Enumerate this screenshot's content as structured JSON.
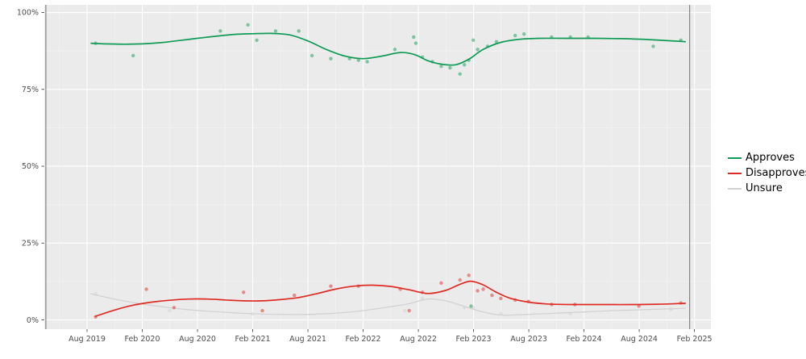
{
  "chart_data": {
    "type": "line",
    "title": "",
    "legend_position": "right",
    "background": "#ffffff",
    "panel_background": "#ebebeb",
    "grid_major_color": "#ffffff",
    "grid_minor_color": "#f4f4f4",
    "tick_label_color": "#4d4d4d",
    "tick_mark_color": "#333333",
    "reference_line_color": "#6e6e6e",
    "x_axis": {
      "range": [
        2019.196,
        2025.232
      ],
      "ticks": [
        "Aug 2019",
        "Feb 2020",
        "Aug 2020",
        "Feb 2021",
        "Aug 2021",
        "Feb 2022",
        "Aug 2022",
        "Feb 2023",
        "Aug 2023",
        "Feb 2024",
        "Aug 2024",
        "Feb 2025"
      ],
      "tick_positions": [
        2019.583,
        2020.083,
        2020.583,
        2021.083,
        2021.583,
        2022.083,
        2022.583,
        2023.083,
        2023.583,
        2024.083,
        2024.583,
        2025.083
      ]
    },
    "y_axis": {
      "range": [
        -3,
        102.5
      ],
      "ticks": [
        "0%",
        "25%",
        "50%",
        "75%",
        "100%"
      ],
      "tick_values": [
        0,
        25,
        50,
        75,
        100
      ]
    },
    "reference_lines_x": [
      2019.21,
      2025.04
    ],
    "series": [
      {
        "name": "Approves",
        "color": "#0f9b56",
        "line": [
          [
            2019.62,
            90
          ],
          [
            2019.75,
            89.8
          ],
          [
            2019.92,
            89.7
          ],
          [
            2020.08,
            89.8
          ],
          [
            2020.25,
            90.2
          ],
          [
            2020.42,
            90.9
          ],
          [
            2020.58,
            91.6
          ],
          [
            2020.75,
            92.3
          ],
          [
            2020.92,
            92.9
          ],
          [
            2021.08,
            93.1
          ],
          [
            2021.25,
            93.2
          ],
          [
            2021.42,
            92.7
          ],
          [
            2021.58,
            90.8
          ],
          [
            2021.75,
            88
          ],
          [
            2021.92,
            85.8
          ],
          [
            2022.08,
            85
          ],
          [
            2022.25,
            85.8
          ],
          [
            2022.42,
            87
          ],
          [
            2022.55,
            86.3
          ],
          [
            2022.67,
            84.3
          ],
          [
            2022.79,
            83.2
          ],
          [
            2022.92,
            83
          ],
          [
            2023.04,
            84.8
          ],
          [
            2023.17,
            88
          ],
          [
            2023.33,
            90.3
          ],
          [
            2023.5,
            91.3
          ],
          [
            2023.67,
            91.6
          ],
          [
            2023.92,
            91.6
          ],
          [
            2024.17,
            91.6
          ],
          [
            2024.42,
            91.5
          ],
          [
            2024.67,
            91.2
          ],
          [
            2024.92,
            90.7
          ],
          [
            2025.0,
            90.5
          ]
        ],
        "points": [
          [
            2019.66,
            90
          ],
          [
            2020.0,
            86
          ],
          [
            2020.79,
            94
          ],
          [
            2021.04,
            96
          ],
          [
            2021.12,
            91
          ],
          [
            2021.29,
            94
          ],
          [
            2021.5,
            94
          ],
          [
            2021.62,
            86
          ],
          [
            2021.79,
            85
          ],
          [
            2021.96,
            85
          ],
          [
            2022.04,
            84.5
          ],
          [
            2022.12,
            84
          ],
          [
            2022.37,
            88
          ],
          [
            2022.54,
            92
          ],
          [
            2022.56,
            90
          ],
          [
            2022.62,
            85.5
          ],
          [
            2022.71,
            84
          ],
          [
            2022.79,
            82.5
          ],
          [
            2022.87,
            82
          ],
          [
            2022.96,
            80
          ],
          [
            2023.0,
            83
          ],
          [
            2023.04,
            84.5
          ],
          [
            2023.06,
            4.5
          ],
          [
            2023.08,
            91
          ],
          [
            2023.12,
            88
          ],
          [
            2023.21,
            89
          ],
          [
            2023.29,
            90.5
          ],
          [
            2023.46,
            92.5
          ],
          [
            2023.54,
            93
          ],
          [
            2023.79,
            92
          ],
          [
            2023.96,
            92
          ],
          [
            2024.12,
            92
          ],
          [
            2024.71,
            89
          ],
          [
            2024.96,
            91
          ]
        ]
      },
      {
        "name": "Disapproves",
        "color": "#dd2c23",
        "line": [
          [
            2019.66,
            1.2
          ],
          [
            2019.83,
            3.2
          ],
          [
            2020.0,
            4.8
          ],
          [
            2020.17,
            5.8
          ],
          [
            2020.33,
            6.4
          ],
          [
            2020.5,
            6.8
          ],
          [
            2020.67,
            6.8
          ],
          [
            2020.83,
            6.5
          ],
          [
            2021.0,
            6.2
          ],
          [
            2021.17,
            6.2
          ],
          [
            2021.33,
            6.6
          ],
          [
            2021.5,
            7.3
          ],
          [
            2021.67,
            8.6
          ],
          [
            2021.83,
            10
          ],
          [
            2022.0,
            11
          ],
          [
            2022.17,
            11.3
          ],
          [
            2022.33,
            10.9
          ],
          [
            2022.5,
            9.8
          ],
          [
            2022.67,
            8.6
          ],
          [
            2022.83,
            9.6
          ],
          [
            2022.96,
            11.6
          ],
          [
            2023.06,
            12.6
          ],
          [
            2023.17,
            11.4
          ],
          [
            2023.29,
            9
          ],
          [
            2023.42,
            7
          ],
          [
            2023.58,
            5.8
          ],
          [
            2023.75,
            5.2
          ],
          [
            2024.0,
            5
          ],
          [
            2024.25,
            5
          ],
          [
            2024.5,
            5
          ],
          [
            2024.75,
            5.1
          ],
          [
            2025.0,
            5.4
          ]
        ],
        "points": [
          [
            2019.66,
            1
          ],
          [
            2020.12,
            10
          ],
          [
            2020.37,
            4
          ],
          [
            2021.0,
            9
          ],
          [
            2021.17,
            3
          ],
          [
            2021.46,
            8
          ],
          [
            2021.79,
            11
          ],
          [
            2022.04,
            11
          ],
          [
            2022.42,
            10
          ],
          [
            2022.5,
            3
          ],
          [
            2022.62,
            9
          ],
          [
            2022.79,
            12
          ],
          [
            2022.96,
            13
          ],
          [
            2023.04,
            14.5
          ],
          [
            2023.12,
            9.5
          ],
          [
            2023.17,
            10
          ],
          [
            2023.25,
            8
          ],
          [
            2023.33,
            7
          ],
          [
            2023.46,
            6.5
          ],
          [
            2023.58,
            6
          ],
          [
            2023.79,
            5
          ],
          [
            2024.0,
            5
          ],
          [
            2024.58,
            4.5
          ],
          [
            2024.96,
            5.5
          ]
        ]
      },
      {
        "name": "Unsure",
        "color": "#d2d2d2",
        "line": [
          [
            2019.62,
            8.5
          ],
          [
            2019.83,
            6.8
          ],
          [
            2020.08,
            5.2
          ],
          [
            2020.33,
            4
          ],
          [
            2020.58,
            3.1
          ],
          [
            2020.83,
            2.5
          ],
          [
            2021.08,
            2
          ],
          [
            2021.33,
            1.8
          ],
          [
            2021.58,
            1.8
          ],
          [
            2021.83,
            2.2
          ],
          [
            2022.08,
            3
          ],
          [
            2022.33,
            4.3
          ],
          [
            2022.5,
            5.3
          ],
          [
            2022.67,
            6.8
          ],
          [
            2022.83,
            6.2
          ],
          [
            2023.0,
            4.4
          ],
          [
            2023.17,
            2.6
          ],
          [
            2023.33,
            1.6
          ],
          [
            2023.58,
            1.8
          ],
          [
            2023.83,
            2.2
          ],
          [
            2024.08,
            2.6
          ],
          [
            2024.33,
            3
          ],
          [
            2024.58,
            3.3
          ],
          [
            2024.83,
            3.6
          ],
          [
            2025.0,
            3.8
          ]
        ],
        "points": [
          [
            2019.66,
            8.5
          ],
          [
            2020.04,
            5
          ],
          [
            2020.33,
            3
          ],
          [
            2021.08,
            2
          ],
          [
            2022.46,
            3
          ],
          [
            2022.62,
            7
          ],
          [
            2023.0,
            4
          ],
          [
            2023.08,
            4
          ],
          [
            2023.33,
            2
          ],
          [
            2023.96,
            2
          ],
          [
            2024.87,
            3.5
          ]
        ]
      }
    ]
  }
}
